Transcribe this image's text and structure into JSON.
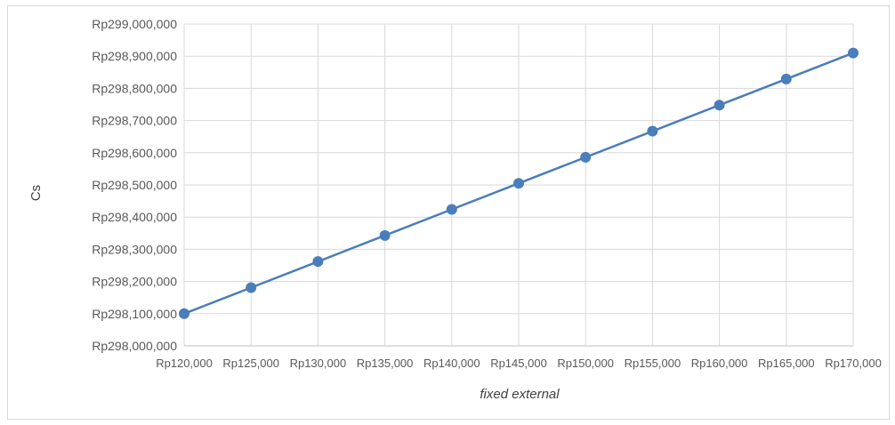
{
  "chart_data": {
    "type": "line",
    "title": "",
    "xlabel": "fixed external",
    "ylabel": "Cs",
    "x": [
      120000,
      125000,
      130000,
      135000,
      140000,
      145000,
      150000,
      155000,
      160000,
      165000,
      170000
    ],
    "x_tick_labels": [
      "Rp120,000",
      "Rp125,000",
      "Rp130,000",
      "Rp135,000",
      "Rp140,000",
      "Rp145,000",
      "Rp150,000",
      "Rp155,000",
      "Rp160,000",
      "Rp165,000",
      "Rp170,000"
    ],
    "series": [
      {
        "values": [
          298100000,
          298181000,
          298262000,
          298343000,
          298424000,
          298505000,
          298586000,
          298667000,
          298748000,
          298829000,
          298910000
        ]
      }
    ],
    "ylim": [
      298000000,
      299000000
    ],
    "y_ticks": [
      298000000,
      298100000,
      298200000,
      298300000,
      298400000,
      298500000,
      298600000,
      298700000,
      298800000,
      298900000,
      299000000
    ],
    "y_tick_labels": [
      "Rp298,000,000",
      "Rp298,100,000",
      "Rp298,200,000",
      "Rp298,300,000",
      "Rp298,400,000",
      "Rp298,500,000",
      "Rp298,600,000",
      "Rp298,700,000",
      "Rp298,800,000",
      "Rp298,900,000",
      "Rp299,000,000"
    ],
    "grid": true,
    "legend": "none",
    "colors": {
      "series": "#4a7ebb",
      "grid": "#d9d9d9"
    }
  }
}
